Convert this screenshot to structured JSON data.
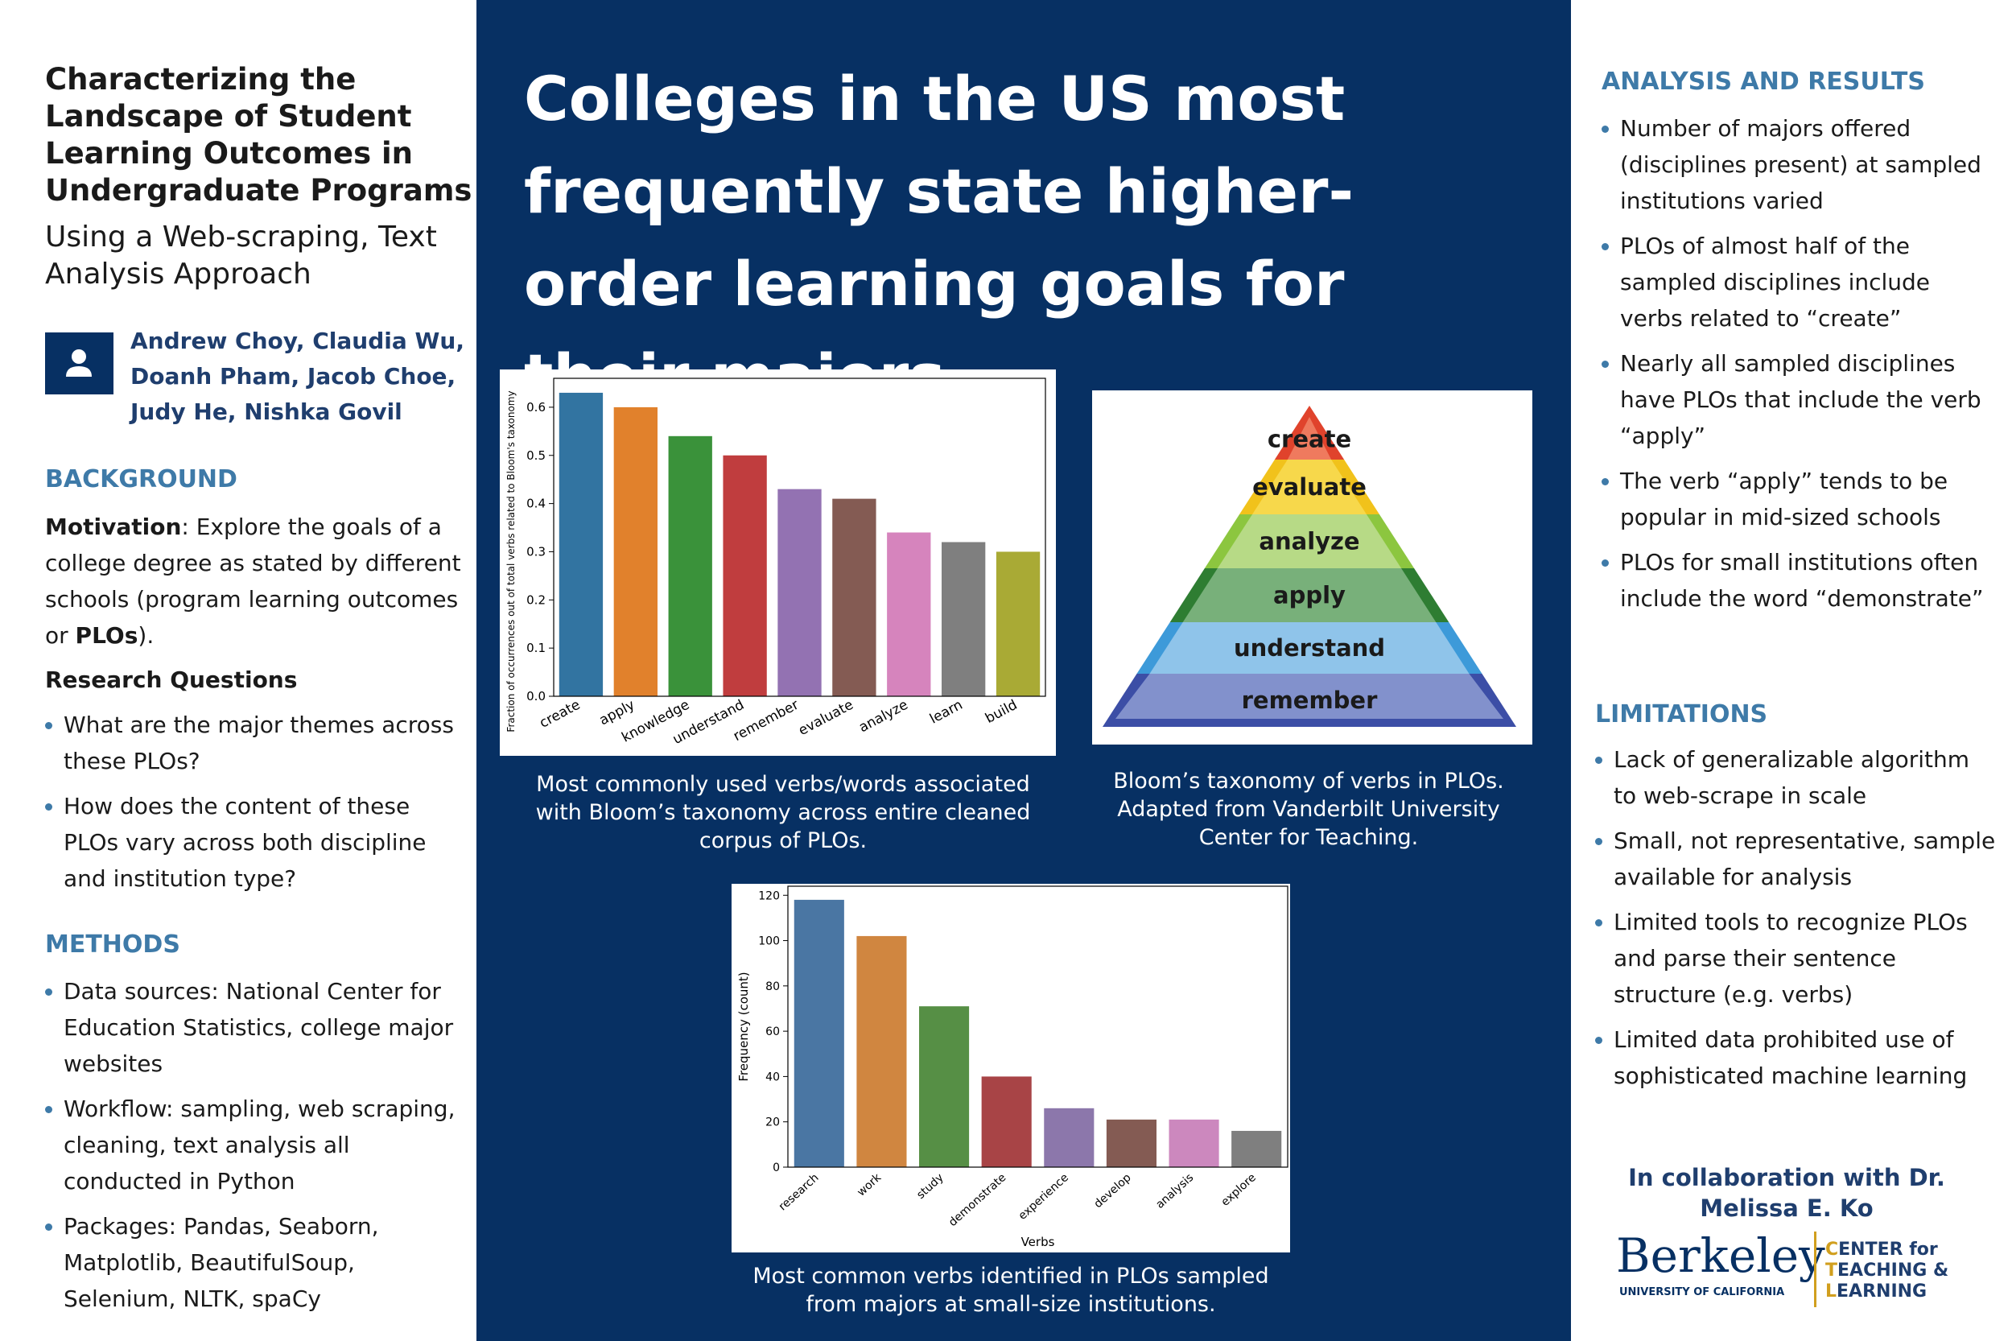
{
  "header": {
    "title": "Characterizing the Landscape of Student Learning Outcomes in Undergraduate Programs",
    "subtitle": "Using a Web-scraping, Text Analysis Approach",
    "authors": "Andrew Choy, Claudia Wu, Doanh Pham, Jacob Choe, Judy He, Nishka Govil"
  },
  "background": {
    "heading": "BACKGROUND",
    "motivation": [
      "Motivation",
      ": Explore the goals of a college degree as stated by different schools (program learning outcomes or ",
      "PLOs",
      ")."
    ],
    "questions_heading": "Research Questions",
    "questions": [
      "What are the major themes across these PLOs?",
      "How does the content of these PLOs vary across both discipline and institution type?"
    ]
  },
  "methods": {
    "heading": "METHODS",
    "bullets": [
      "Data sources: National Center for Education Statistics, college major websites",
      "Workflow: sampling, web scraping, cleaning, text analysis all conducted in Python",
      "Packages: Pandas, Seaborn, Matplotlib, BeautifulSoup, Selenium, NLTK, spaCy"
    ]
  },
  "headline": "Colleges in the US most frequently state higher-order learning goals for their majors.",
  "verbs_chart": {
    "type": "bar",
    "ylabel": "Fraction of occurrences out of total verbs related to Bloom's taxonomy",
    "categories": [
      "create",
      "apply",
      "knowledge",
      "understand",
      "remember",
      "evaluate",
      "analyze",
      "learn",
      "build"
    ],
    "values": [
      0.63,
      0.6,
      0.54,
      0.5,
      0.43,
      0.41,
      0.34,
      0.32,
      0.3
    ],
    "colors": [
      "#3274a1",
      "#e1812c",
      "#3a923a",
      "#c03d3e",
      "#9372b2",
      "#845b53",
      "#d684bd",
      "#7f7f7f",
      "#a9aa35"
    ],
    "ylim": [
      0,
      0.66
    ],
    "yticks": [
      {
        "value": 0,
        "label": "0.0"
      },
      0.1,
      0.2,
      0.3,
      0.4,
      0.5,
      0.6
    ],
    "caption": "Most commonly used verbs/words associated with Bloom’s taxonomy across entire cleaned corpus of PLOs."
  },
  "pyramid": {
    "levels": [
      "create",
      "evaluate",
      "analyze",
      "apply",
      "understand",
      "remember"
    ],
    "caption": "Bloom’s taxonomy of verbs in PLOs. Adapted from Vanderbilt University Center for Teaching."
  },
  "small_chart": {
    "type": "bar",
    "xlabel": "Verbs",
    "ylabel": "Frequency (count)",
    "categories": [
      "research",
      "work",
      "study",
      "demonstrate",
      "experience",
      "develop",
      "analysis",
      "explore"
    ],
    "values": [
      118,
      102,
      71,
      40,
      26,
      21,
      21,
      16
    ],
    "colors": [
      "#4a76a3",
      "#d08640",
      "#568f45",
      "#a84446",
      "#8c77ab",
      "#845b53",
      "#cc88be",
      "#7f7f7f"
    ],
    "ylim": [
      0,
      124
    ],
    "yticks": [
      0,
      20,
      40,
      60,
      80,
      100,
      120
    ],
    "caption": "Most common verbs identified in PLOs sampled from majors at small-size institutions."
  },
  "analysis": {
    "heading": "ANALYSIS AND RESULTS",
    "bullets": [
      "Number of majors offered (disciplines present) at sampled institutions varied",
      "PLOs of almost half of the sampled disciplines include verbs related to “create”",
      "Nearly all sampled disciplines have PLOs that include the verb “apply”",
      "The verb “apply” tends to be popular in mid-sized schools",
      "PLOs for small institutions often include the word “demonstrate”"
    ]
  },
  "limitations": {
    "heading": "LIMITATIONS",
    "bullets": [
      "Lack of generalizable algorithm to web-scrape in scale",
      "Small, not representative, sample available for analysis",
      "Limited tools to recognize PLOs and parse their sentence structure (e.g. verbs)",
      "Limited data prohibited use of sophisticated machine learning"
    ]
  },
  "collaboration": "In collaboration with Dr. Melissa E. Ko",
  "logo": {
    "name": "Berkeley",
    "sub": "UNIVERSITY OF CALIFORNIA",
    "center": [
      "CENTER for",
      "TEACHING &",
      "LEARNING"
    ]
  }
}
